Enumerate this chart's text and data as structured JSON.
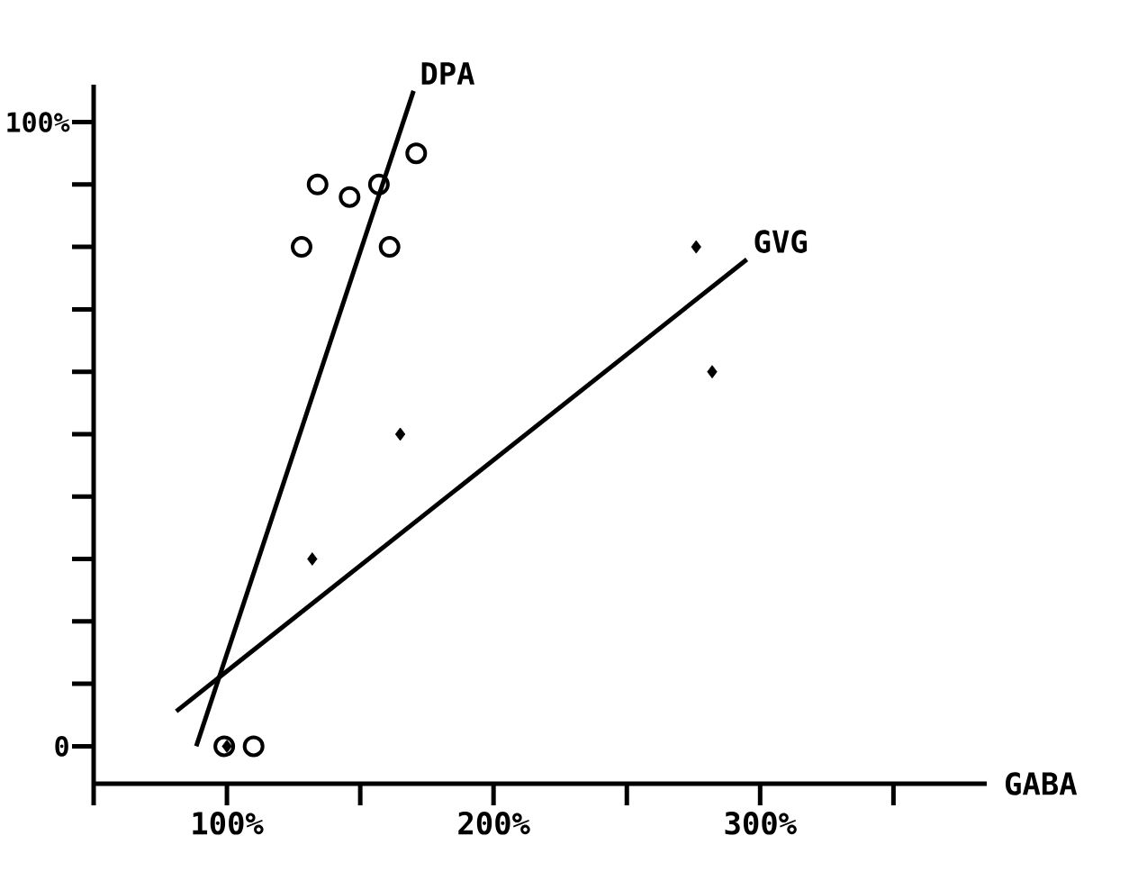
{
  "chart_data": {
    "type": "scatter",
    "xlabel": "GABA",
    "xlim": [
      50,
      385
    ],
    "ylim": [
      -6,
      106
    ],
    "xticks": [
      {
        "value": 50,
        "label": null
      },
      {
        "value": 100,
        "label": "100%"
      },
      {
        "value": 150,
        "label": null
      },
      {
        "value": 200,
        "label": "200%"
      },
      {
        "value": 250,
        "label": null
      },
      {
        "value": 300,
        "label": "300%"
      },
      {
        "value": 350,
        "label": null
      }
    ],
    "yticks": [
      0,
      {
        "value": 10,
        "label": null
      },
      {
        "value": 20,
        "label": null
      },
      {
        "value": 30,
        "label": null
      },
      {
        "value": 40,
        "label": null
      },
      {
        "value": 50,
        "label": null
      },
      {
        "value": 60,
        "label": null
      },
      {
        "value": 70,
        "label": null
      },
      {
        "value": 80,
        "label": null
      },
      {
        "value": 90,
        "label": null
      },
      {
        "value": 100,
        "label": "100%"
      }
    ],
    "series": [
      {
        "type": "scatter",
        "marker": "circle",
        "color": "#000000",
        "x": [
          99,
          110,
          128,
          134,
          146,
          157,
          161,
          171
        ],
        "values": [
          0,
          0,
          80,
          90,
          88,
          90,
          80,
          95
        ]
      },
      {
        "type": "line",
        "name": "DPA",
        "color": "#000000",
        "x": [
          88.5,
          170
        ],
        "values": [
          0,
          105
        ]
      },
      {
        "type": "scatter",
        "marker": "diamond",
        "color": "#000000",
        "x": [
          100,
          132,
          165,
          276,
          282
        ],
        "values": [
          0,
          30,
          50,
          80,
          60
        ]
      },
      {
        "type": "line",
        "name": "GVG",
        "color": "#000000",
        "x": [
          81,
          295
        ],
        "values": [
          5.6,
          78
        ]
      }
    ]
  }
}
